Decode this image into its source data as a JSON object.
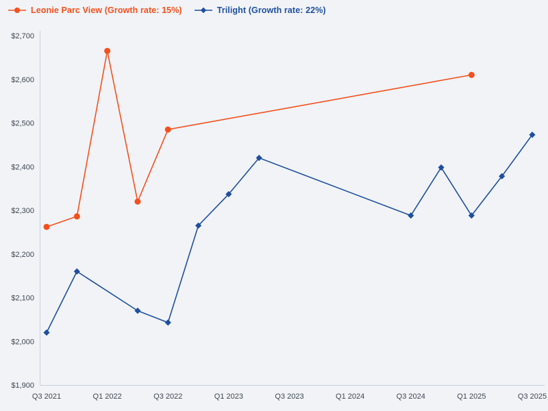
{
  "chart_data": {
    "type": "line",
    "title": "",
    "grid": false,
    "legend_position": "top-left",
    "background_color": "#f1f3f6",
    "axis_color": "#c8d1e0",
    "tick_label_color": "#3f4651",
    "x_categories": [
      "Q3 2021",
      "Q4 2021",
      "Q1 2022",
      "Q2 2022",
      "Q3 2022",
      "Q4 2022",
      "Q1 2023",
      "Q2 2023",
      "Q3 2023",
      "Q4 2023",
      "Q1 2024",
      "Q2 2024",
      "Q3 2024",
      "Q4 2024",
      "Q1 2025",
      "Q2 2025",
      "Q3 2025"
    ],
    "x_tick_labels": [
      "Q3 2021",
      "Q1 2022",
      "Q3 2022",
      "Q1 2023",
      "Q3 2023",
      "Q1 2024",
      "Q3 2024",
      "Q1 2025",
      "Q3 2025"
    ],
    "ylim": [
      1900,
      2700
    ],
    "y_ticks": [
      {
        "value": 1900,
        "label": "$1,900"
      },
      {
        "value": 2000,
        "label": "$2,000"
      },
      {
        "value": 2100,
        "label": "$2,100"
      },
      {
        "value": 2200,
        "label": "$2,200"
      },
      {
        "value": 2300,
        "label": "$2,300"
      },
      {
        "value": 2400,
        "label": "$2,400"
      },
      {
        "value": 2500,
        "label": "$2,500"
      },
      {
        "value": 2600,
        "label": "$2,600"
      },
      {
        "value": 2700,
        "label": "$2,700"
      }
    ],
    "series": [
      {
        "name": "Leonie Parc View (Growth rate: 15%)",
        "color": "#f4501e",
        "marker": "circle",
        "points": [
          {
            "x": "Q3 2021",
            "y": 2262
          },
          {
            "x": "Q4 2021",
            "y": 2286
          },
          {
            "x": "Q1 2022",
            "y": 2665
          },
          {
            "x": "Q2 2022",
            "y": 2320
          },
          {
            "x": "Q3 2022",
            "y": 2485
          },
          {
            "x": "Q1 2025",
            "y": 2610
          }
        ]
      },
      {
        "name": "Trilight (Growth rate: 22%)",
        "color": "#1f4f9e",
        "marker": "diamond",
        "points": [
          {
            "x": "Q3 2021",
            "y": 2020
          },
          {
            "x": "Q4 2021",
            "y": 2160
          },
          {
            "x": "Q2 2022",
            "y": 2070
          },
          {
            "x": "Q3 2022",
            "y": 2043
          },
          {
            "x": "Q4 2022",
            "y": 2265
          },
          {
            "x": "Q1 2023",
            "y": 2337
          },
          {
            "x": "Q2 2023",
            "y": 2420
          },
          {
            "x": "Q3 2024",
            "y": 2288
          },
          {
            "x": "Q4 2024",
            "y": 2398
          },
          {
            "x": "Q1 2025",
            "y": 2288
          },
          {
            "x": "Q2 2025",
            "y": 2378
          },
          {
            "x": "Q3 2025",
            "y": 2473
          }
        ]
      }
    ]
  }
}
